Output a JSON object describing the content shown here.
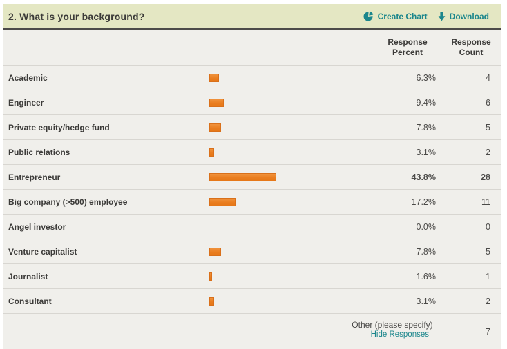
{
  "header": {
    "title": "2. What is your background?",
    "actions": {
      "create_chart_label": "Create Chart",
      "download_label": "Download"
    }
  },
  "columns": {
    "percent_header": "Response\nPercent",
    "count_header": "Response\nCount"
  },
  "rows": [
    {
      "label": "Academic",
      "percent": "6.3%",
      "percent_value": 6.3,
      "count": "4",
      "bold": false
    },
    {
      "label": "Engineer",
      "percent": "9.4%",
      "percent_value": 9.4,
      "count": "6",
      "bold": false
    },
    {
      "label": "Private equity/hedge fund",
      "percent": "7.8%",
      "percent_value": 7.8,
      "count": "5",
      "bold": false
    },
    {
      "label": "Public relations",
      "percent": "3.1%",
      "percent_value": 3.1,
      "count": "2",
      "bold": false
    },
    {
      "label": "Entrepreneur",
      "percent": "43.8%",
      "percent_value": 43.8,
      "count": "28",
      "bold": true
    },
    {
      "label": "Big company (>500) employee",
      "percent": "17.2%",
      "percent_value": 17.2,
      "count": "11",
      "bold": false
    },
    {
      "label": "Angel investor",
      "percent": "0.0%",
      "percent_value": 0.0,
      "count": "0",
      "bold": false
    },
    {
      "label": "Venture capitalist",
      "percent": "7.8%",
      "percent_value": 7.8,
      "count": "5",
      "bold": false
    },
    {
      "label": "Journalist",
      "percent": "1.6%",
      "percent_value": 1.6,
      "count": "1",
      "bold": false
    },
    {
      "label": "Consultant",
      "percent": "3.1%",
      "percent_value": 3.1,
      "count": "2",
      "bold": false
    }
  ],
  "footer": {
    "other_label": "Other (please specify)",
    "link_label": "Hide Responses",
    "count": "7"
  },
  "colors": {
    "header_bg": "#e4e7c3",
    "header_border": "#4c4b49",
    "table_bg": "#f0efeb",
    "row_separator": "#d8d6d1",
    "bar_orange": "#ea7e20",
    "link_teal": "#1b868c",
    "text_dark": "#3c3b39"
  },
  "chart_data": {
    "type": "bar",
    "orientation": "horizontal",
    "title": "2. What is your background?",
    "categories": [
      "Academic",
      "Engineer",
      "Private equity/hedge fund",
      "Public relations",
      "Entrepreneur",
      "Big company (>500) employee",
      "Angel investor",
      "Venture capitalist",
      "Journalist",
      "Consultant"
    ],
    "series": [
      {
        "name": "Response Percent",
        "unit": "%",
        "values": [
          6.3,
          9.4,
          7.8,
          3.1,
          43.8,
          17.2,
          0.0,
          7.8,
          1.6,
          3.1
        ]
      },
      {
        "name": "Response Count",
        "values": [
          4,
          6,
          5,
          2,
          28,
          11,
          0,
          5,
          1,
          2
        ]
      }
    ],
    "highlighted_category": "Entrepreneur",
    "other_answers": {
      "label": "Other (please specify)",
      "count": 7
    },
    "legend_position": "none",
    "grid": false
  }
}
